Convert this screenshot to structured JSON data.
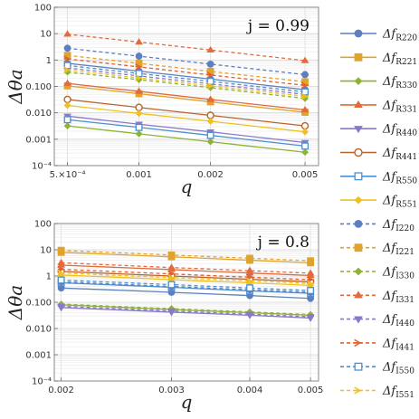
{
  "chart_data": [
    {
      "type": "line",
      "annotation": "j = 0.99",
      "xlabel": "q",
      "ylabel": "Δθa",
      "xscale": "log",
      "yscale": "log",
      "x_ticks": [
        "5.×10⁻⁴",
        "0.001",
        "0.002",
        "0.005"
      ],
      "y_ticks": [
        "10⁻⁴",
        "0.001",
        "0.010",
        "0.100",
        "1",
        "10",
        "100"
      ],
      "xlim": [
        0.00044,
        0.0057
      ],
      "ylim": [
        0.0001,
        100
      ],
      "grid": true,
      "x": [
        0.0005,
        0.001,
        0.002,
        0.005
      ],
      "series": [
        {
          "name": "R220",
          "values": [
            0.75,
            0.38,
            0.19,
            0.075
          ]
        },
        {
          "name": "R221",
          "values": [
            0.105,
            0.053,
            0.026,
            0.0105
          ]
        },
        {
          "name": "R330",
          "values": [
            0.0032,
            0.0016,
            0.0008,
            0.00032
          ]
        },
        {
          "name": "R331",
          "values": [
            0.13,
            0.065,
            0.032,
            0.013
          ]
        },
        {
          "name": "R440",
          "values": [
            0.0075,
            0.0037,
            0.0019,
            0.00075
          ]
        },
        {
          "name": "R441",
          "values": [
            0.032,
            0.016,
            0.008,
            0.0032
          ]
        },
        {
          "name": "R550",
          "values": [
            0.0055,
            0.0028,
            0.0014,
            0.00055
          ]
        },
        {
          "name": "R551",
          "values": [
            0.019,
            0.0095,
            0.0048,
            0.0019
          ]
        },
        {
          "name": "I220",
          "values": [
            2.8,
            1.4,
            0.7,
            0.28
          ]
        },
        {
          "name": "I221",
          "values": [
            1.5,
            0.75,
            0.37,
            0.15
          ]
        },
        {
          "name": "I330",
          "values": [
            0.35,
            0.18,
            0.09,
            0.035
          ]
        },
        {
          "name": "I331",
          "values": [
            9.5,
            4.8,
            2.4,
            0.95
          ]
        },
        {
          "name": "I440",
          "values": [
            0.5,
            0.25,
            0.125,
            0.05
          ]
        },
        {
          "name": "I441",
          "values": [
            1.1,
            0.55,
            0.27,
            0.11
          ]
        },
        {
          "name": "I550",
          "values": [
            0.62,
            0.31,
            0.155,
            0.062
          ]
        },
        {
          "name": "I551",
          "values": [
            0.42,
            0.21,
            0.105,
            0.042
          ]
        }
      ]
    },
    {
      "type": "line",
      "annotation": "j = 0.8",
      "xlabel": "q",
      "ylabel": "Δθa",
      "xscale": "log",
      "yscale": "log",
      "x_ticks": [
        "0.002",
        "0.003",
        "0.004",
        "0.005"
      ],
      "y_ticks": [
        "10⁻⁴",
        "0.001",
        "0.010",
        "0.100",
        "1",
        "10",
        "100"
      ],
      "xlim": [
        0.00195,
        0.00515
      ],
      "ylim": [
        0.0001,
        100
      ],
      "grid": true,
      "x": [
        0.002,
        0.003,
        0.004,
        0.005
      ],
      "series": [
        {
          "name": "R220",
          "values": [
            0.35,
            0.24,
            0.18,
            0.14
          ]
        },
        {
          "name": "R221",
          "values": [
            8.0,
            5.4,
            4.0,
            3.2
          ]
        },
        {
          "name": "R330",
          "values": [
            0.08,
            0.053,
            0.04,
            0.032
          ]
        },
        {
          "name": "R331",
          "values": [
            2.6,
            1.75,
            1.3,
            1.05
          ]
        },
        {
          "name": "R440",
          "values": [
            0.063,
            0.042,
            0.032,
            0.025
          ]
        },
        {
          "name": "R441",
          "values": [
            1.5,
            1.0,
            0.75,
            0.6
          ]
        },
        {
          "name": "R550",
          "values": [
            0.55,
            0.37,
            0.27,
            0.22
          ]
        },
        {
          "name": "R551",
          "values": [
            1.1,
            0.73,
            0.55,
            0.44
          ]
        },
        {
          "name": "I220",
          "values": [
            0.6,
            0.4,
            0.3,
            0.24
          ]
        },
        {
          "name": "I221",
          "values": [
            9.5,
            6.3,
            4.75,
            3.8
          ]
        },
        {
          "name": "I330",
          "values": [
            0.085,
            0.057,
            0.043,
            0.034
          ]
        },
        {
          "name": "I331",
          "values": [
            3.2,
            2.1,
            1.6,
            1.28
          ]
        },
        {
          "name": "I440",
          "values": [
            0.07,
            0.047,
            0.035,
            0.028
          ]
        },
        {
          "name": "I441",
          "values": [
            1.8,
            1.2,
            0.9,
            0.72
          ]
        },
        {
          "name": "I550",
          "values": [
            0.7,
            0.47,
            0.35,
            0.28
          ]
        },
        {
          "name": "I551",
          "values": [
            1.3,
            0.87,
            0.65,
            0.52
          ]
        }
      ]
    }
  ],
  "legend": [
    {
      "base": "Δf",
      "sub": "R220",
      "color": "#5b7fc0",
      "marker": "circle",
      "dash": false
    },
    {
      "base": "Δf",
      "sub": "R221",
      "color": "#e0a32c",
      "marker": "square",
      "dash": false
    },
    {
      "base": "Δf",
      "sub": "R330",
      "color": "#8db234",
      "marker": "diamond",
      "dash": false
    },
    {
      "base": "Δf",
      "sub": "R331",
      "color": "#e26a3c",
      "marker": "triangle-up",
      "dash": false
    },
    {
      "base": "Δf",
      "sub": "R440",
      "color": "#8a78c8",
      "marker": "triangle-down",
      "dash": false
    },
    {
      "base": "Δf",
      "sub": "R441",
      "color": "#b8642c",
      "marker": "circle-open",
      "dash": false
    },
    {
      "base": "Δf",
      "sub": "R550",
      "color": "#4a90d0",
      "marker": "square-open",
      "dash": false
    },
    {
      "base": "Δf",
      "sub": "R551",
      "color": "#f0c020",
      "marker": "diamond",
      "dash": false
    },
    {
      "base": "Δf",
      "sub": "I220",
      "color": "#5b7fc0",
      "marker": "circle",
      "dash": true
    },
    {
      "base": "Δf",
      "sub": "I221",
      "color": "#e0a32c",
      "marker": "square",
      "dash": true
    },
    {
      "base": "Δf",
      "sub": "I330",
      "color": "#8db234",
      "marker": "diamond",
      "dash": true
    },
    {
      "base": "Δf",
      "sub": "I331",
      "color": "#e26a3c",
      "marker": "triangle-up",
      "dash": true
    },
    {
      "base": "Δf",
      "sub": "I440",
      "color": "#8a78c8",
      "marker": "triangle-down",
      "dash": true
    },
    {
      "base": "Δf",
      "sub": "I441",
      "color": "#e06030",
      "marker": "arrow",
      "dash": true
    },
    {
      "base": "Δf",
      "sub": "I550",
      "color": "#4a90d0",
      "marker": "square-open",
      "dash": true
    },
    {
      "base": "Δf",
      "sub": "I551",
      "color": "#f0c020",
      "marker": "arrow",
      "dash": true
    }
  ]
}
